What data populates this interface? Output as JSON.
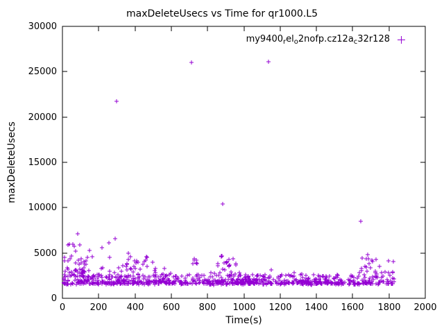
{
  "chart_data": {
    "type": "scatter",
    "title": "maxDeleteUsecs vs Time for qr1000.L5",
    "xlabel": "Time(s)",
    "ylabel": "maxDeleteUsecs",
    "xlim": [
      0,
      2000
    ],
    "ylim": [
      0,
      30000
    ],
    "xticks": [
      0,
      200,
      400,
      600,
      800,
      1000,
      1200,
      1400,
      1600,
      1800,
      2000
    ],
    "yticks": [
      0,
      5000,
      10000,
      15000,
      20000,
      25000,
      30000
    ],
    "grid": false,
    "legend_position": "top-right-inside",
    "axis_color": "#000000",
    "background": "#FFFFFF",
    "series": [
      {
        "name": "my9400_rel_o2nofp.cz12a_c32r128",
        "name_segments": [
          {
            "text": "my9400"
          },
          {
            "text": "r",
            "sub": true
          },
          {
            "text": "el"
          },
          {
            "text": "o",
            "sub": true
          },
          {
            "text": "2nofp.cz12a"
          },
          {
            "text": "c",
            "sub": true
          },
          {
            "text": "32r128"
          }
        ],
        "marker": "plus",
        "color": "#9400D3",
        "seed": 7,
        "outliers": [
          {
            "x": 297,
            "y": 21700
          },
          {
            "x": 712,
            "y": 26000
          },
          {
            "x": 1137,
            "y": 26100
          },
          {
            "x": 882,
            "y": 10400
          },
          {
            "x": 1643,
            "y": 8500
          },
          {
            "x": 83,
            "y": 7100
          },
          {
            "x": 30,
            "y": 5900
          },
          {
            "x": 148,
            "y": 5300
          },
          {
            "x": 218,
            "y": 5600
          },
          {
            "x": 255,
            "y": 6100
          },
          {
            "x": 292,
            "y": 6600
          },
          {
            "x": 362,
            "y": 5000
          }
        ],
        "band_clusters": [
          {
            "n": 520,
            "x": [
              5,
              1830
            ],
            "y": [
              1600,
              2650
            ],
            "pow": 2.4
          },
          {
            "n": 230,
            "x": [
              5,
              1830
            ],
            "y": [
              1480,
              2000
            ],
            "pow": 1.0
          },
          {
            "n": 42,
            "x": [
              5,
              130
            ],
            "y": [
              2400,
              6000
            ],
            "pow": 1.8
          },
          {
            "n": 55,
            "x": [
              90,
              520
            ],
            "y": [
              2350,
              4600
            ],
            "pow": 2.2
          },
          {
            "n": 14,
            "x": [
              355,
              470
            ],
            "y": [
              3100,
              4800
            ],
            "pow": 1.3
          },
          {
            "n": 6,
            "x": [
              695,
              745
            ],
            "y": [
              3800,
              4400
            ],
            "pow": 1.0
          },
          {
            "n": 16,
            "x": [
              855,
              965
            ],
            "y": [
              3500,
              4800
            ],
            "pow": 1.3
          },
          {
            "n": 26,
            "x": [
              1620,
              1830
            ],
            "y": [
              2800,
              4800
            ],
            "pow": 1.6
          },
          {
            "n": 34,
            "x": [
              500,
              1620
            ],
            "y": [
              2450,
              3300
            ],
            "pow": 2.2
          }
        ]
      }
    ]
  }
}
